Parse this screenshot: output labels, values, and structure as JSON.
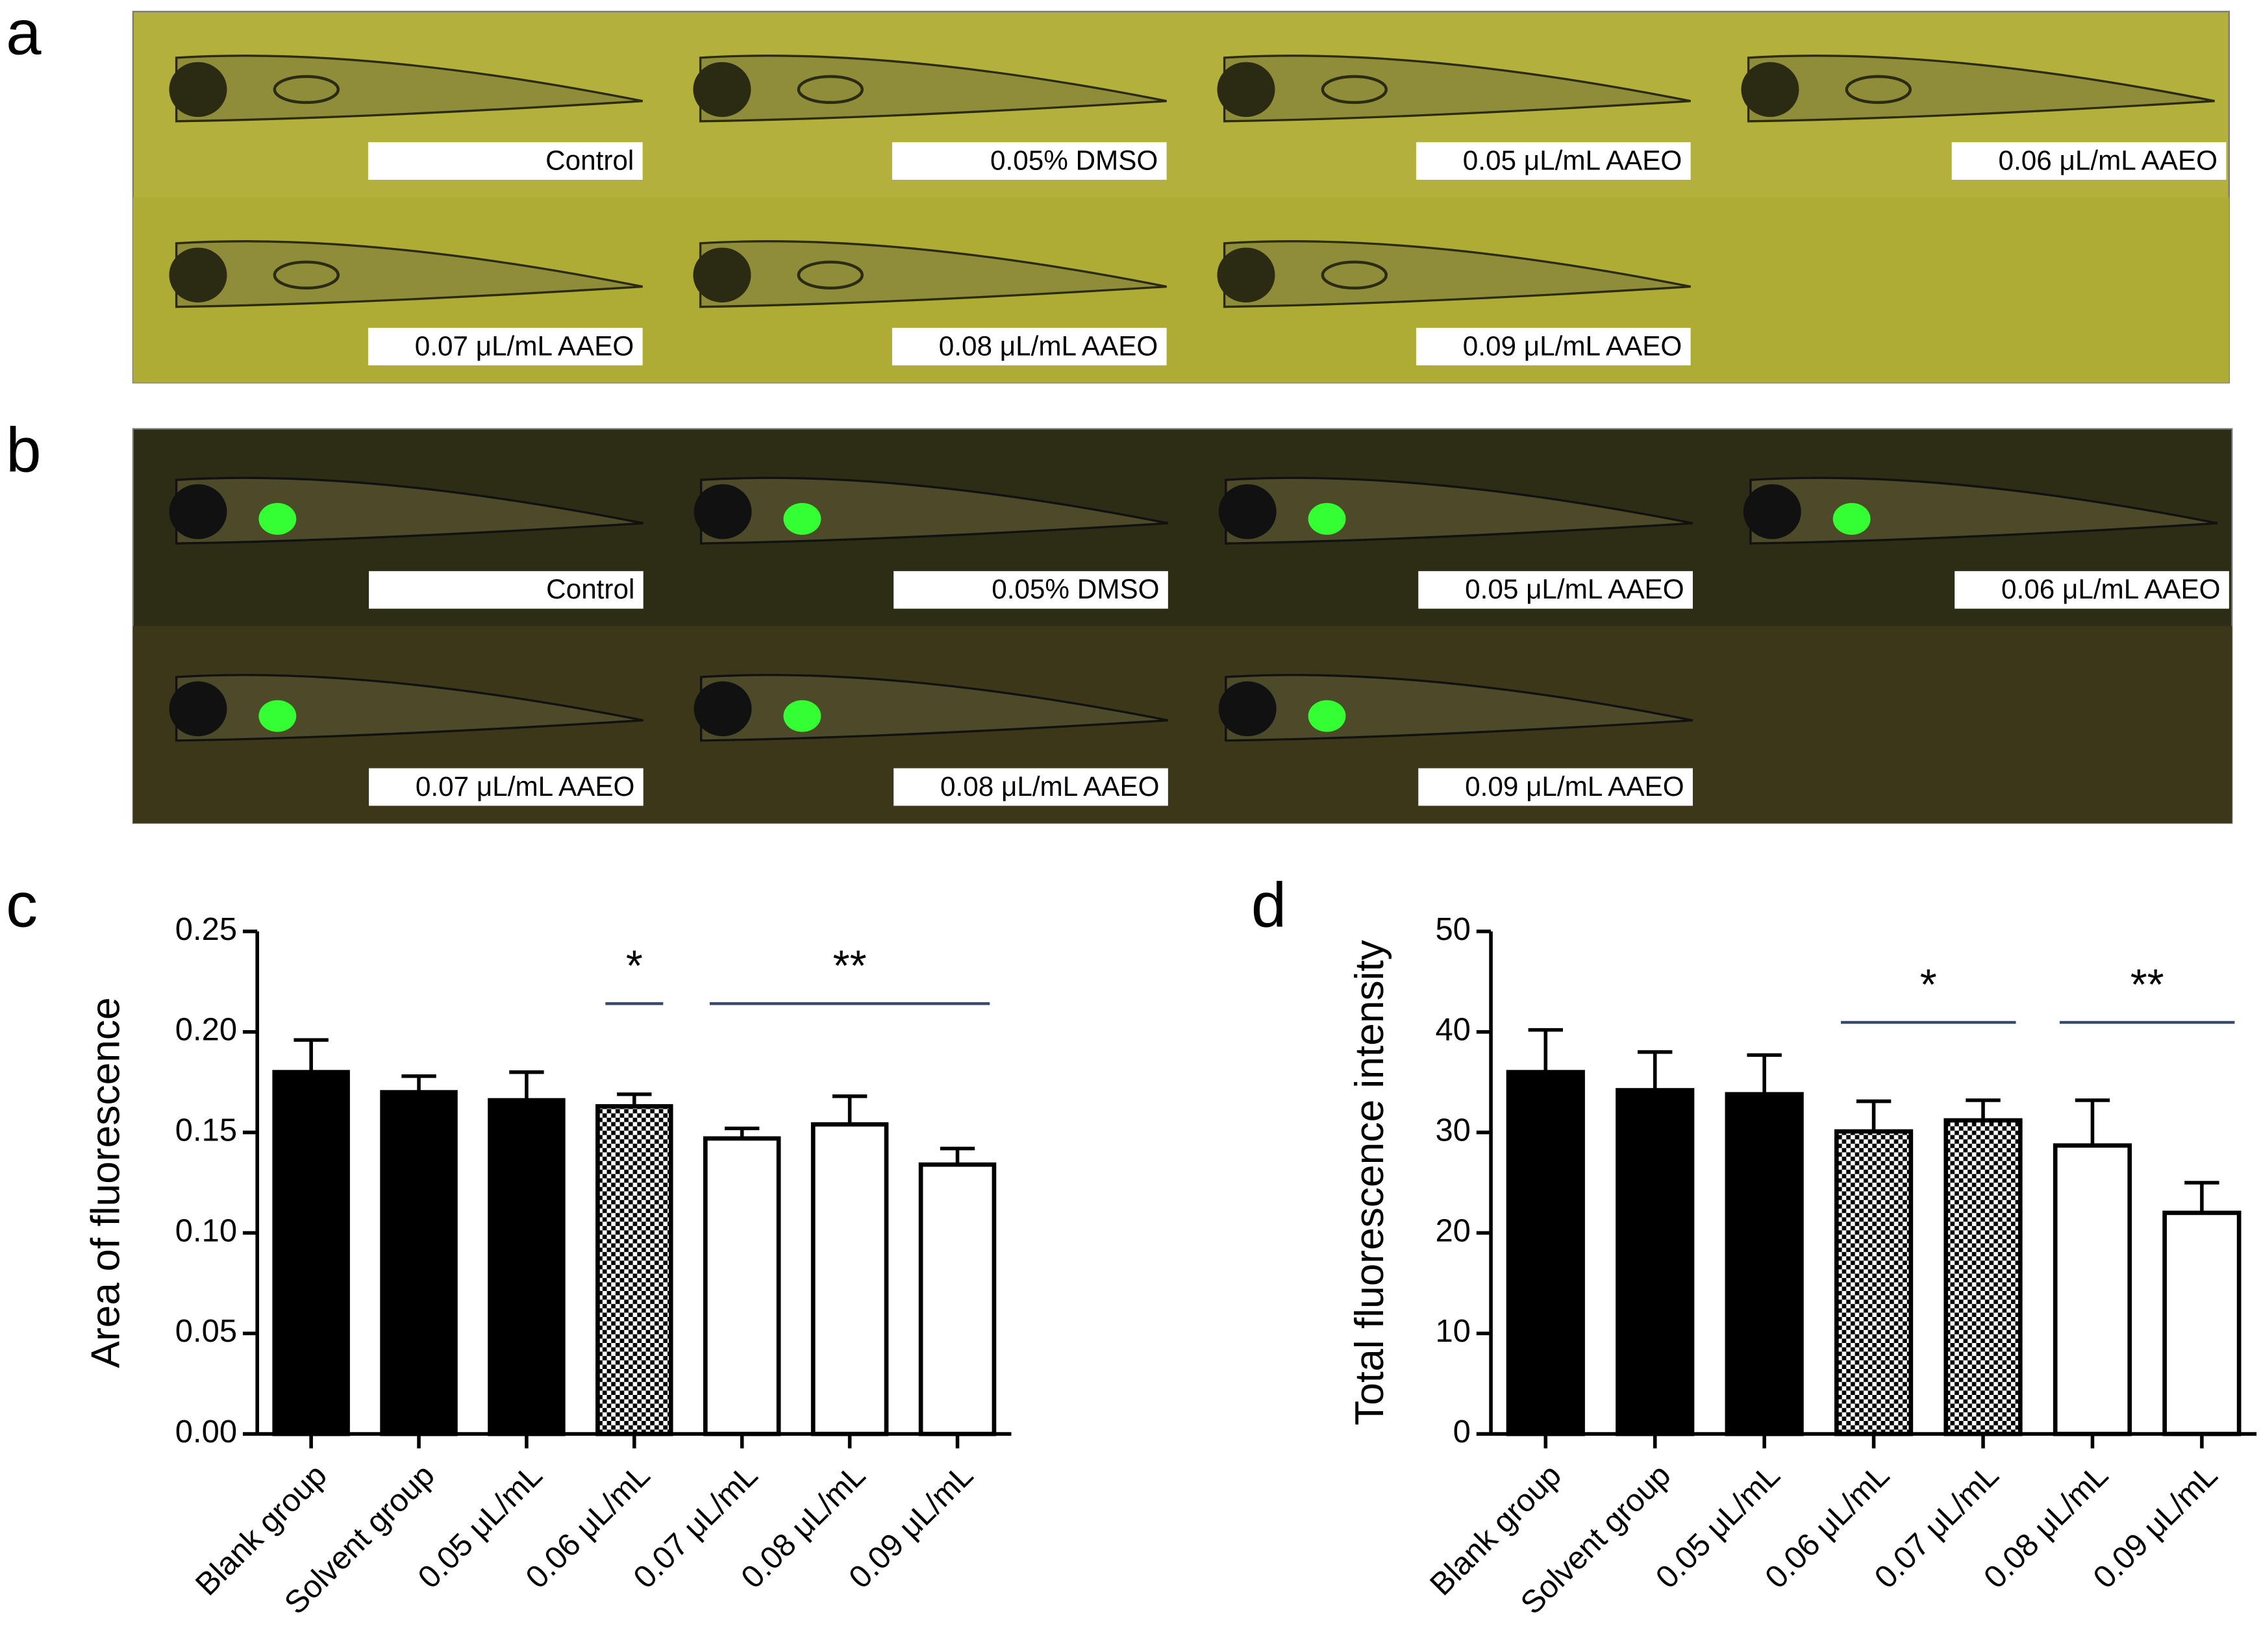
{
  "panels": [
    {
      "label": "a",
      "images": [
        "Control",
        "0.05% DMSO",
        "0.05 μL/mL AAEO",
        "0.06 μL/mL AAEO",
        "0.07 μL/mL AAEO",
        "0.08 μL/mL AAEO",
        "0.09 μL/mL AAEO"
      ]
    },
    {
      "label": "b",
      "images": [
        "Control",
        "0.05% DMSO",
        "0.05 μL/mL AAEO",
        "0.06 μL/mL AAEO",
        "0.07 μL/mL AAEO",
        "0.08 μL/mL AAEO",
        "0.09 μL/mL AAEO"
      ]
    }
  ],
  "chart_data": [
    {
      "type": "bar",
      "panel_label": "c",
      "y_label": "Area of fluorescence",
      "categories": [
        "Blank group",
        "Solvent group",
        "0.05  μL/mL",
        "0.06  μL/mL",
        "0.07  μL/mL",
        "0.08  μL/mL",
        "0.09  μL/mL"
      ],
      "values": [
        0.18,
        0.17,
        0.166,
        0.163,
        0.147,
        0.154,
        0.134
      ],
      "errors": [
        0.016,
        0.008,
        0.014,
        0.006,
        0.005,
        0.014,
        0.008
      ],
      "fills": [
        "black",
        "black",
        "black",
        "checker",
        "white",
        "white",
        "white"
      ],
      "ylim": [
        0,
        0.25
      ],
      "yticks": [
        {
          "value": 0,
          "label": "0.00"
        },
        0.05,
        {
          "value": 0.1,
          "label": "0.10"
        },
        0.15,
        {
          "value": 0.2,
          "label": "0.20"
        },
        0.25
      ],
      "annotations": [
        "*",
        "**"
      ]
    },
    {
      "type": "bar",
      "panel_label": "d",
      "y_label": "Total fluorescence intensity",
      "categories": [
        "Blank group",
        "Solvent group",
        "0.05  μL/mL",
        "0.06  μL/mL",
        "0.07  μL/mL",
        "0.08  μL/mL",
        "0.09  μL/mL"
      ],
      "values": [
        36,
        34.2,
        33.8,
        30.1,
        31.2,
        28.7,
        22
      ],
      "errors": [
        4.2,
        3.8,
        3.9,
        3.0,
        2.0,
        4.5,
        3.0
      ],
      "fills": [
        "black",
        "black",
        "black",
        "checker",
        "checker",
        "white",
        "white"
      ],
      "ylim": [
        0,
        50
      ],
      "yticks": [
        0,
        10,
        20,
        30,
        40,
        50
      ],
      "annotations": [
        "*",
        "**"
      ]
    }
  ]
}
